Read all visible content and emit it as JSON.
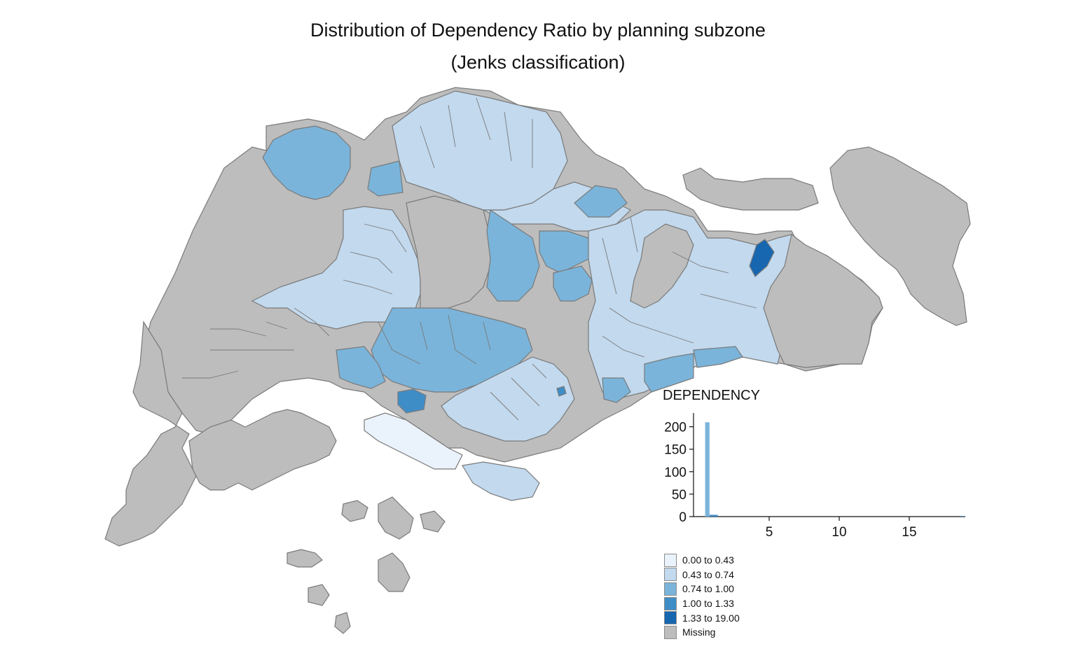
{
  "title": {
    "line1": "Distribution of Dependency Ratio by planning subzone",
    "line2": "(Jenks classification)"
  },
  "colors": {
    "class1": "#eaf2fb",
    "class2": "#c2d9ee",
    "class3": "#7ab4da",
    "class4": "#3f8dc7",
    "class5": "#1766b0",
    "missing": "#bdbdbd",
    "border": "#7a7a7a"
  },
  "legend": {
    "items": [
      {
        "label": "0.00 to 0.43",
        "color": "#eaf2fb"
      },
      {
        "label": "0.43 to 0.74",
        "color": "#c2d9ee"
      },
      {
        "label": "0.74 to 1.00",
        "color": "#7ab4da"
      },
      {
        "label": "1.00 to 1.33",
        "color": "#3f8dc7"
      },
      {
        "label": "1.33 to 19.00",
        "color": "#1766b0"
      },
      {
        "label": "Missing",
        "color": "#bdbdbd"
      }
    ]
  },
  "histogram": {
    "title": "DEPENDENCY",
    "x_ticks": [
      "5",
      "10",
      "15"
    ],
    "y_ticks": [
      "0",
      "50",
      "100",
      "150",
      "200"
    ]
  },
  "chart_data": {
    "type": "bar",
    "title": "DEPENDENCY",
    "x_range": [
      0,
      19
    ],
    "y_range": [
      0,
      215
    ],
    "bins": [
      {
        "x0": 0.43,
        "x1": 0.74,
        "value": 210,
        "color": "#7ab4da"
      },
      {
        "x0": 0.74,
        "x1": 1.33,
        "value": 4,
        "color": "#3f8dc7"
      },
      {
        "x0": 18.6,
        "x1": 19.0,
        "value": 1,
        "color": "#1766b0"
      }
    ],
    "x_ticks": [
      5,
      10,
      15
    ],
    "y_ticks": [
      0,
      50,
      100,
      150,
      200
    ]
  }
}
